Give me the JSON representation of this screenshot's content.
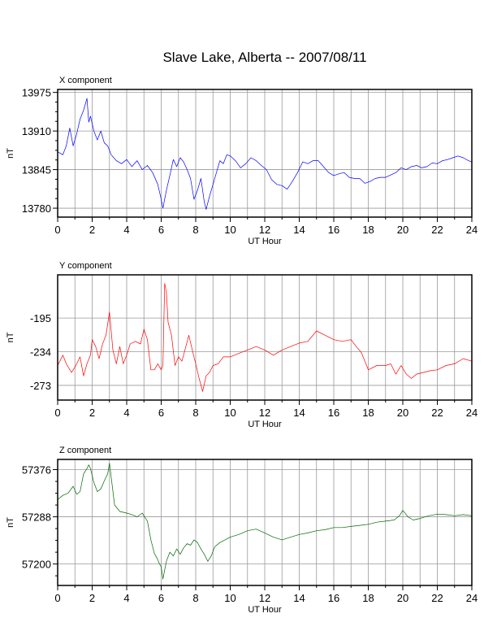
{
  "title": "Slave Lake, Alberta -- 2007/08/11",
  "chart_data": [
    {
      "type": "line",
      "title": "X component",
      "xlabel": "UT Hour",
      "ylabel": "nT",
      "xlim": [
        0,
        24
      ],
      "ylim": [
        13765,
        13980
      ],
      "x_ticks": [
        "0",
        "2",
        "4",
        "6",
        "8",
        "10",
        "12",
        "14",
        "16",
        "18",
        "20",
        "22",
        "24"
      ],
      "y_ticks": [
        "13780",
        "13845",
        "13910",
        "13975"
      ],
      "grid": true,
      "color": "#0000ff",
      "series": [
        {
          "x": [
            0,
            0.3,
            0.5,
            0.7,
            0.9,
            1.1,
            1.3,
            1.5,
            1.7,
            1.8,
            1.9,
            2.1,
            2.3,
            2.5,
            2.7,
            2.9,
            3.1,
            3.4,
            3.7,
            4.0,
            4.3,
            4.6,
            4.9,
            5.2,
            5.5,
            5.8,
            6.0,
            6.1,
            6.3,
            6.5,
            6.7,
            6.9,
            7.1,
            7.3,
            7.5,
            7.7,
            7.9,
            8.1,
            8.3,
            8.5,
            8.6,
            8.8,
            9.0,
            9.2,
            9.4,
            9.6,
            9.8,
            10.0,
            10.3,
            10.6,
            10.9,
            11.2,
            11.5,
            11.8,
            12.1,
            12.4,
            12.7,
            13.0,
            13.3,
            13.6,
            13.9,
            14.2,
            14.5,
            14.8,
            15.1,
            15.4,
            15.7,
            16.0,
            16.3,
            16.6,
            16.9,
            17.2,
            17.5,
            17.8,
            18.1,
            18.4,
            18.7,
            19.0,
            19.3,
            19.6,
            19.9,
            20.2,
            20.5,
            20.8,
            21.1,
            21.4,
            21.7,
            22.0,
            22.3,
            22.6,
            22.9,
            23.2,
            23.5,
            23.8,
            24.0
          ],
          "y": [
            13875,
            13870,
            13885,
            13915,
            13885,
            13905,
            13930,
            13945,
            13965,
            13925,
            13935,
            13910,
            13895,
            13910,
            13890,
            13885,
            13870,
            13860,
            13855,
            13862,
            13850,
            13860,
            13845,
            13852,
            13840,
            13820,
            13795,
            13780,
            13810,
            13835,
            13862,
            13850,
            13865,
            13858,
            13845,
            13830,
            13795,
            13810,
            13830,
            13790,
            13778,
            13800,
            13820,
            13840,
            13860,
            13855,
            13870,
            13868,
            13860,
            13848,
            13855,
            13865,
            13860,
            13852,
            13845,
            13828,
            13820,
            13818,
            13812,
            13825,
            13840,
            13858,
            13855,
            13860,
            13860,
            13850,
            13840,
            13835,
            13838,
            13840,
            13832,
            13830,
            13830,
            13822,
            13825,
            13830,
            13832,
            13832,
            13836,
            13840,
            13848,
            13845,
            13850,
            13852,
            13848,
            13850,
            13856,
            13855,
            13860,
            13862,
            13865,
            13868,
            13865,
            13860,
            13858
          ]
        }
      ]
    },
    {
      "type": "line",
      "title": "Y component",
      "xlabel": "UT Hour",
      "ylabel": "nT",
      "xlim": [
        0,
        24
      ],
      "ylim": [
        -290,
        -145
      ],
      "x_ticks": [
        "0",
        "2",
        "4",
        "6",
        "8",
        "10",
        "12",
        "14",
        "16",
        "18",
        "20",
        "22",
        "24"
      ],
      "y_ticks": [
        "-195",
        "-234",
        "-273"
      ],
      "grid": true,
      "color": "#ff0000",
      "series": [
        {
          "x": [
            0,
            0.3,
            0.5,
            0.8,
            1.0,
            1.3,
            1.5,
            1.7,
            1.9,
            2.0,
            2.2,
            2.4,
            2.6,
            2.8,
            3.0,
            3.2,
            3.4,
            3.6,
            3.8,
            4.0,
            4.2,
            4.5,
            4.8,
            5.0,
            5.2,
            5.4,
            5.6,
            5.8,
            6.0,
            6.1,
            6.2,
            6.3,
            6.4,
            6.6,
            6.8,
            7.0,
            7.2,
            7.4,
            7.6,
            7.8,
            8.0,
            8.2,
            8.4,
            8.6,
            8.8,
            9.0,
            9.3,
            9.6,
            10.0,
            10.5,
            11.0,
            11.5,
            12.0,
            12.5,
            13.0,
            13.5,
            14.0,
            14.5,
            15.0,
            15.5,
            16.0,
            16.5,
            17.0,
            17.3,
            17.6,
            18.0,
            18.5,
            19.0,
            19.3,
            19.6,
            19.9,
            20.2,
            20.5,
            20.8,
            21.2,
            21.6,
            22.0,
            22.5,
            23.0,
            23.5,
            24.0
          ],
          "y": [
            -250,
            -238,
            -248,
            -258,
            -252,
            -240,
            -262,
            -248,
            -238,
            -220,
            -228,
            -242,
            -225,
            -215,
            -188,
            -232,
            -248,
            -228,
            -248,
            -238,
            -225,
            -222,
            -225,
            -208,
            -220,
            -255,
            -255,
            -248,
            -255,
            -250,
            -155,
            -165,
            -200,
            -215,
            -250,
            -240,
            -245,
            -230,
            -215,
            -232,
            -248,
            -265,
            -280,
            -262,
            -258,
            -250,
            -248,
            -240,
            -240,
            -236,
            -232,
            -228,
            -232,
            -238,
            -232,
            -228,
            -224,
            -222,
            -210,
            -215,
            -220,
            -222,
            -220,
            -228,
            -235,
            -255,
            -250,
            -250,
            -248,
            -260,
            -250,
            -260,
            -265,
            -260,
            -258,
            -256,
            -255,
            -250,
            -248,
            -242,
            -245
          ]
        }
      ]
    },
    {
      "type": "line",
      "title": "Z component",
      "xlabel": "UT Hour",
      "ylabel": "nT",
      "xlim": [
        0,
        24
      ],
      "ylim": [
        57160,
        57395
      ],
      "x_ticks": [
        "0",
        "2",
        "4",
        "6",
        "8",
        "10",
        "12",
        "14",
        "16",
        "18",
        "20",
        "22",
        "24"
      ],
      "y_ticks": [
        "57200",
        "57288",
        "57376"
      ],
      "grid": true,
      "color": "#006600",
      "series": [
        {
          "x": [
            0,
            0.3,
            0.6,
            0.9,
            1.1,
            1.3,
            1.5,
            1.7,
            1.8,
            1.9,
            2.1,
            2.3,
            2.5,
            2.7,
            2.9,
            3.0,
            3.1,
            3.3,
            3.6,
            4.0,
            4.3,
            4.6,
            4.9,
            5.2,
            5.4,
            5.6,
            5.8,
            5.9,
            6.0,
            6.1,
            6.3,
            6.5,
            6.7,
            6.9,
            7.1,
            7.3,
            7.5,
            7.7,
            7.9,
            8.1,
            8.3,
            8.5,
            8.7,
            8.9,
            9.1,
            9.4,
            9.7,
            10.0,
            10.5,
            11.0,
            11.5,
            12.0,
            12.5,
            13.0,
            13.5,
            14.0,
            14.5,
            15.0,
            15.5,
            16.0,
            16.5,
            17.0,
            17.5,
            18.0,
            18.5,
            19.0,
            19.5,
            19.8,
            20.0,
            20.3,
            20.6,
            21.0,
            21.5,
            22.0,
            22.5,
            23.0,
            23.5,
            24.0
          ],
          "y": [
            57320,
            57328,
            57332,
            57345,
            57330,
            57335,
            57368,
            57378,
            57385,
            57378,
            57352,
            57335,
            57340,
            57355,
            57368,
            57388,
            57362,
            57310,
            57298,
            57295,
            57292,
            57288,
            57295,
            57280,
            57245,
            57220,
            57208,
            57200,
            57195,
            57172,
            57205,
            57222,
            57215,
            57228,
            57218,
            57230,
            57238,
            57235,
            57245,
            57240,
            57228,
            57218,
            57205,
            57215,
            57232,
            57240,
            57245,
            57250,
            57255,
            57262,
            57265,
            57258,
            57250,
            57245,
            57250,
            57255,
            57258,
            57262,
            57264,
            57268,
            57268,
            57270,
            57272,
            57274,
            57278,
            57280,
            57282,
            57290,
            57300,
            57288,
            57282,
            57285,
            57290,
            57293,
            57292,
            57290,
            57292,
            57290
          ]
        }
      ]
    }
  ]
}
